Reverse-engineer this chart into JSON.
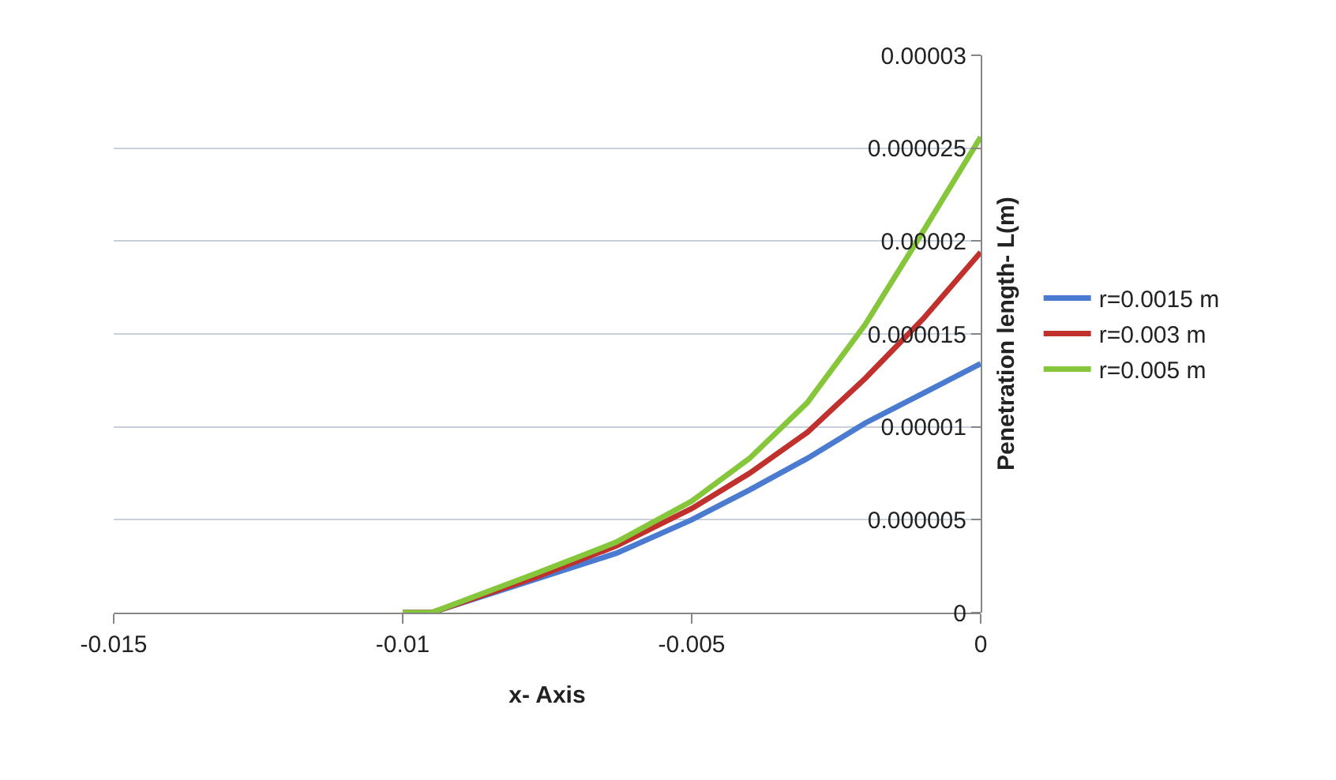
{
  "chart_data": {
    "type": "line",
    "xlabel": "x- Axis",
    "ylabel": "Penetration length- L(m)",
    "x": [
      -0.01,
      -0.0095,
      -0.0077,
      -0.0063,
      -0.005,
      -0.004,
      -0.003,
      -0.002,
      -0.001,
      0
    ],
    "series": [
      {
        "name": "r=0.0015 m",
        "color": "#4a7bd0",
        "values": [
          0,
          0,
          1.8e-06,
          3.2e-06,
          5e-06,
          6.6e-06,
          8.3e-06,
          1.02e-05,
          1.18e-05,
          1.34e-05
        ]
      },
      {
        "name": "r=0.003 m",
        "color": "#c0302c",
        "values": [
          0,
          0,
          1.9e-06,
          3.6e-06,
          5.6e-06,
          7.5e-06,
          9.7e-06,
          1.26e-05,
          1.58e-05,
          1.94e-05
        ]
      },
      {
        "name": "r=0.005 m",
        "color": "#86c63a",
        "values": [
          0,
          0,
          2.1e-06,
          3.8e-06,
          6e-06,
          8.3e-06,
          1.13e-05,
          1.55e-05,
          2.05e-05,
          2.56e-05
        ]
      }
    ],
    "xlim": [
      -0.015,
      0
    ],
    "xticks": [
      -0.015,
      -0.01,
      -0.005,
      0
    ],
    "ylim": [
      0,
      3e-05
    ],
    "yticks": [
      0,
      {
        "value": 5e-06,
        "label": "0.000005"
      },
      {
        "value": 1e-05,
        "label": "0.00001"
      },
      {
        "value": 1.5e-05,
        "label": "0.000015"
      },
      {
        "value": 2e-05,
        "label": "0.00002"
      },
      {
        "value": 2.5e-05,
        "label": "0.000025"
      },
      {
        "value": 3e-05,
        "label": "0.00003"
      }
    ],
    "grid": "y",
    "legend": "right",
    "marker": "none",
    "line_style": "solid"
  }
}
